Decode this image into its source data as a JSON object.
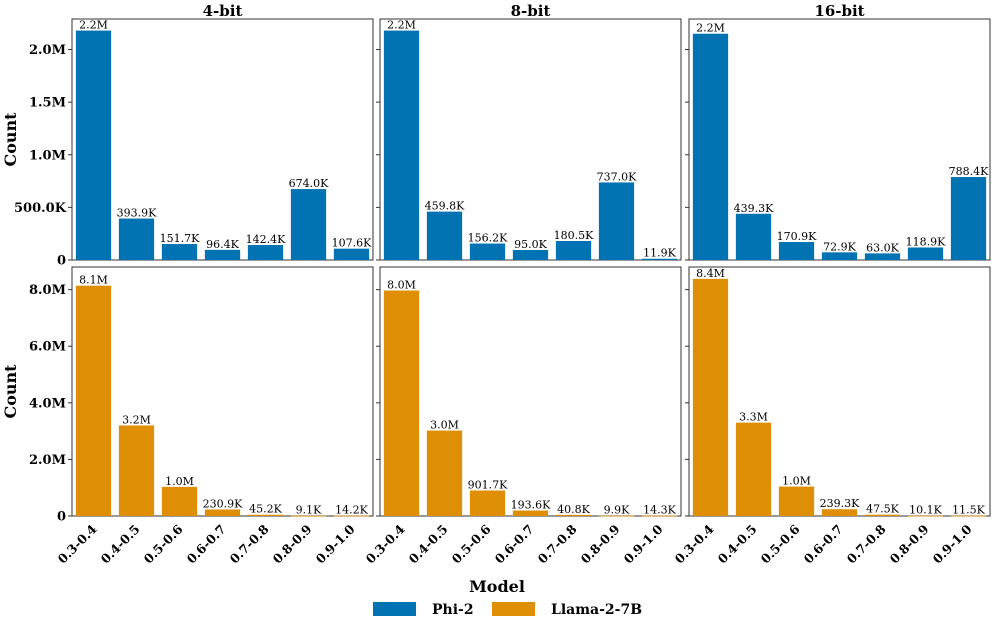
{
  "colors": {
    "phi": "#0173B2",
    "llama": "#DE8F05"
  },
  "xlabel": "Model",
  "ylabel": "Count",
  "legend": [
    {
      "name": "Phi-2",
      "color": "#0173B2"
    },
    {
      "name": "Llama-2-7B",
      "color": "#DE8F05"
    }
  ],
  "chart_data": [
    {
      "type": "bar",
      "model": "Phi-2",
      "precision": "4-bit",
      "title": "4-bit",
      "categories": [
        "0.3-0.4",
        "0.4-0.5",
        "0.5-0.6",
        "0.6-0.7",
        "0.7-0.8",
        "0.8-0.9",
        "0.9-1.0"
      ],
      "values": [
        2180000,
        393900,
        151700,
        96400,
        142400,
        674000,
        107600
      ],
      "labels": [
        "2.2M",
        "393.9K",
        "151.7K",
        "96.4K",
        "142.4K",
        "674.0K",
        "107.6K"
      ],
      "yticks": [
        0,
        500000,
        1000000,
        1500000,
        2000000
      ],
      "yticklabels": [
        "0",
        "500.0K",
        "1.0M",
        "1.5M",
        "2.0M"
      ],
      "ylim": [
        0,
        2290000
      ],
      "ylabel": "Count"
    },
    {
      "type": "bar",
      "model": "Phi-2",
      "precision": "8-bit",
      "title": "8-bit",
      "categories": [
        "0.3-0.4",
        "0.4-0.5",
        "0.5-0.6",
        "0.6-0.7",
        "0.7-0.8",
        "0.8-0.9",
        "0.9-1.0"
      ],
      "values": [
        2180000,
        459800,
        156200,
        95000,
        180500,
        737000,
        11900
      ],
      "labels": [
        "2.2M",
        "459.8K",
        "156.2K",
        "95.0K",
        "180.5K",
        "737.0K",
        "11.9K"
      ],
      "yticks": [
        0,
        500000,
        1000000,
        1500000,
        2000000
      ],
      "yticklabels": [
        "",
        "",
        "",
        "",
        ""
      ],
      "ylim": [
        0,
        2290000
      ],
      "ylabel": ""
    },
    {
      "type": "bar",
      "model": "Phi-2",
      "precision": "16-bit",
      "title": "16-bit",
      "categories": [
        "0.3-0.4",
        "0.4-0.5",
        "0.5-0.6",
        "0.6-0.7",
        "0.7-0.8",
        "0.8-0.9",
        "0.9-1.0"
      ],
      "values": [
        2150000,
        439300,
        170900,
        72900,
        63000,
        118900,
        788400
      ],
      "labels": [
        "2.2M",
        "439.3K",
        "170.9K",
        "72.9K",
        "63.0K",
        "118.9K",
        "788.4K"
      ],
      "yticks": [
        0,
        500000,
        1000000,
        1500000,
        2000000
      ],
      "yticklabels": [
        "",
        "",
        "",
        "",
        ""
      ],
      "ylim": [
        0,
        2290000
      ],
      "ylabel": ""
    },
    {
      "type": "bar",
      "model": "Llama-2-7B",
      "precision": "4-bit",
      "title": "",
      "categories": [
        "0.3-0.4",
        "0.4-0.5",
        "0.5-0.6",
        "0.6-0.7",
        "0.7-0.8",
        "0.8-0.9",
        "0.9-1.0"
      ],
      "values": [
        8140000,
        3200000,
        1030000,
        230900,
        45200,
        9100,
        14200
      ],
      "labels": [
        "8.1M",
        "3.2M",
        "1.0M",
        "230.9K",
        "45.2K",
        "9.1K",
        "14.2K"
      ],
      "yticks": [
        0,
        2000000,
        4000000,
        6000000,
        8000000
      ],
      "yticklabels": [
        "0",
        "2.0M",
        "4.0M",
        "6.0M",
        "8.0M"
      ],
      "ylim": [
        0,
        8800000
      ],
      "ylabel": "Count"
    },
    {
      "type": "bar",
      "model": "Llama-2-7B",
      "precision": "8-bit",
      "title": "",
      "categories": [
        "0.3-0.4",
        "0.4-0.5",
        "0.5-0.6",
        "0.6-0.7",
        "0.7-0.8",
        "0.8-0.9",
        "0.9-1.0"
      ],
      "values": [
        7970000,
        3020000,
        901700,
        193600,
        40800,
        9900,
        14300
      ],
      "labels": [
        "8.0M",
        "3.0M",
        "901.7K",
        "193.6K",
        "40.8K",
        "9.9K",
        "14.3K"
      ],
      "yticks": [
        0,
        2000000,
        4000000,
        6000000,
        8000000
      ],
      "yticklabels": [
        "",
        "",
        "",
        "",
        ""
      ],
      "ylim": [
        0,
        8800000
      ],
      "ylabel": ""
    },
    {
      "type": "bar",
      "model": "Llama-2-7B",
      "precision": "16-bit",
      "title": "",
      "categories": [
        "0.3-0.4",
        "0.4-0.5",
        "0.5-0.6",
        "0.6-0.7",
        "0.7-0.8",
        "0.8-0.9",
        "0.9-1.0"
      ],
      "values": [
        8380000,
        3300000,
        1040000,
        239300,
        47500,
        10100,
        11500
      ],
      "labels": [
        "8.4M",
        "3.3M",
        "1.0M",
        "239.3K",
        "47.5K",
        "10.1K",
        "11.5K"
      ],
      "yticks": [
        0,
        2000000,
        4000000,
        6000000,
        8000000
      ],
      "yticklabels": [
        "",
        "",
        "",
        "",
        ""
      ],
      "ylim": [
        0,
        8800000
      ],
      "ylabel": ""
    }
  ]
}
